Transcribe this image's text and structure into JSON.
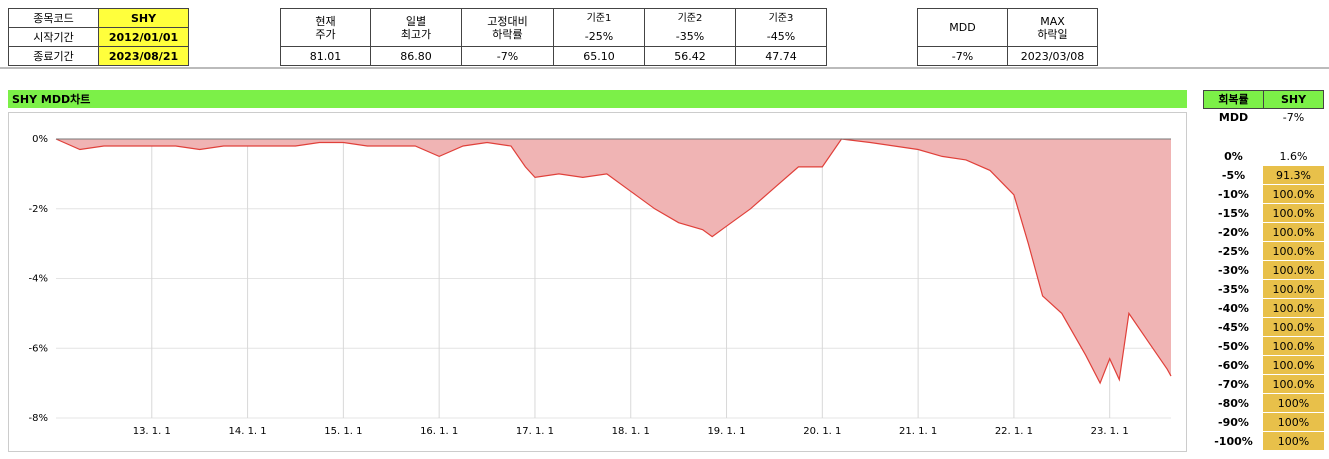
{
  "header": {
    "rows": [
      [
        "종목코드",
        "SHY"
      ],
      [
        "시작기간",
        "2012/01/01"
      ],
      [
        "종료기간",
        "2023/08/21"
      ]
    ]
  },
  "stats": {
    "headers": [
      "현재\n주가",
      "일별\n최고가",
      "고정대비\n하락률",
      "기준1",
      "기준2",
      "기준3"
    ],
    "thresholds": [
      "-25%",
      "-35%",
      "-45%"
    ],
    "values": [
      "81.01",
      "86.80",
      "-7%",
      "65.10",
      "56.42",
      "47.74"
    ]
  },
  "mdd_table": {
    "headers": [
      "MDD",
      "MAX\n하락일"
    ],
    "values": [
      "-7%",
      "2023/03/08"
    ]
  },
  "chart_title": "SHY MDD차트",
  "recovery_table": {
    "headers": [
      "회복률",
      "SHY"
    ],
    "mdd_row": [
      "MDD",
      "-7%"
    ],
    "rows": [
      [
        "0%",
        "1.6%"
      ],
      [
        "-5%",
        "91.3%"
      ],
      [
        "-10%",
        "100.0%"
      ],
      [
        "-15%",
        "100.0%"
      ],
      [
        "-20%",
        "100.0%"
      ],
      [
        "-25%",
        "100.0%"
      ],
      [
        "-30%",
        "100.0%"
      ],
      [
        "-35%",
        "100.0%"
      ],
      [
        "-40%",
        "100.0%"
      ],
      [
        "-45%",
        "100.0%"
      ],
      [
        "-50%",
        "100.0%"
      ],
      [
        "-60%",
        "100.0%"
      ],
      [
        "-70%",
        "100.0%"
      ],
      [
        "-80%",
        "100%"
      ],
      [
        "-90%",
        "100%"
      ],
      [
        "-100%",
        "100%"
      ]
    ]
  },
  "chart_data": {
    "type": "area",
    "color": "#e0403a",
    "fill": "#f0b4b4",
    "grid": true,
    "x": [
      2012.0,
      2012.25,
      2012.5,
      2012.75,
      2013.0,
      2013.25,
      2013.5,
      2013.75,
      2014.0,
      2014.25,
      2014.5,
      2014.75,
      2015.0,
      2015.25,
      2015.5,
      2015.75,
      2016.0,
      2016.25,
      2016.5,
      2016.75,
      2016.9,
      2017.0,
      2017.25,
      2017.5,
      2017.75,
      2018.0,
      2018.25,
      2018.5,
      2018.75,
      2018.85,
      2019.0,
      2019.25,
      2019.5,
      2019.75,
      2020.0,
      2020.2,
      2020.5,
      2020.75,
      2021.0,
      2021.25,
      2021.5,
      2021.75,
      2022.0,
      2022.15,
      2022.3,
      2022.5,
      2022.75,
      2022.9,
      2023.0,
      2023.1,
      2023.2,
      2023.4,
      2023.6,
      2023.64
    ],
    "values": [
      0,
      -0.3,
      -0.2,
      -0.2,
      -0.2,
      -0.2,
      -0.3,
      -0.2,
      -0.2,
      -0.2,
      -0.2,
      -0.1,
      -0.1,
      -0.2,
      -0.2,
      -0.2,
      -0.5,
      -0.2,
      -0.1,
      -0.2,
      -0.8,
      -1.1,
      -1.0,
      -1.1,
      -1.0,
      -1.5,
      -2.0,
      -2.4,
      -2.6,
      -2.8,
      -2.5,
      -2.0,
      -1.4,
      -0.8,
      -0.8,
      0,
      -0.1,
      -0.2,
      -0.3,
      -0.5,
      -0.6,
      -0.9,
      -1.6,
      -3.0,
      -4.5,
      -5.0,
      -6.2,
      -7.0,
      -6.3,
      -6.9,
      -5.0,
      -5.8,
      -6.6,
      -6.8
    ],
    "xlim": [
      2012.0,
      2023.64
    ],
    "xticks": [
      {
        "value": 2013,
        "label": "13. 1. 1"
      },
      {
        "value": 2014,
        "label": "14. 1. 1"
      },
      {
        "value": 2015,
        "label": "15. 1. 1"
      },
      {
        "value": 2016,
        "label": "16. 1. 1"
      },
      {
        "value": 2017,
        "label": "17. 1. 1"
      },
      {
        "value": 2018,
        "label": "18. 1. 1"
      },
      {
        "value": 2019,
        "label": "19. 1. 1"
      },
      {
        "value": 2020,
        "label": "20. 1. 1"
      },
      {
        "value": 2021,
        "label": "21. 1. 1"
      },
      {
        "value": 2022,
        "label": "22. 1. 1"
      },
      {
        "value": 2023,
        "label": "23. 1. 1"
      }
    ],
    "ylim": [
      -8,
      0
    ],
    "yticks": [
      {
        "value": 0,
        "label": "0%"
      },
      {
        "value": -2,
        "label": "-2%"
      },
      {
        "value": -4,
        "label": "-4%"
      },
      {
        "value": -6,
        "label": "-6%"
      },
      {
        "value": -8,
        "label": "-8%"
      }
    ]
  }
}
